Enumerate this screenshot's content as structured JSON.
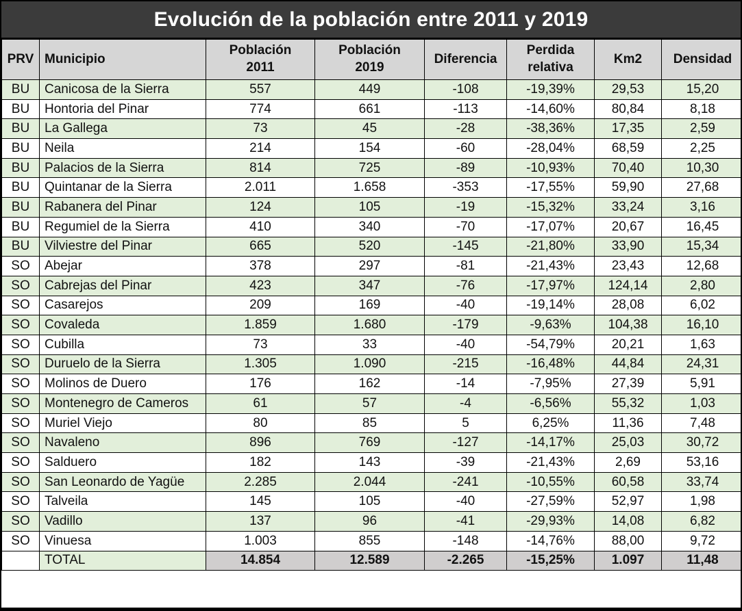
{
  "chart_data": {
    "type": "table",
    "title": "Evolución de la población entre 2011 y 2019",
    "columns": [
      "PRV",
      "Municipio",
      "Población\n2011",
      "Población\n2019",
      "Diferencia",
      "Perdida\nrelativa",
      "Km2",
      "Densidad"
    ],
    "rows": [
      [
        "BU",
        "Canicosa de la Sierra",
        "557",
        "449",
        "-108",
        "-19,39%",
        "29,53",
        "15,20"
      ],
      [
        "BU",
        "Hontoria del Pinar",
        "774",
        "661",
        "-113",
        "-14,60%",
        "80,84",
        "8,18"
      ],
      [
        "BU",
        "La Gallega",
        "73",
        "45",
        "-28",
        "-38,36%",
        "17,35",
        "2,59"
      ],
      [
        "BU",
        "Neila",
        "214",
        "154",
        "-60",
        "-28,04%",
        "68,59",
        "2,25"
      ],
      [
        "BU",
        "Palacios de la Sierra",
        "814",
        "725",
        "-89",
        "-10,93%",
        "70,40",
        "10,30"
      ],
      [
        "BU",
        "Quintanar de la Sierra",
        "2.011",
        "1.658",
        "-353",
        "-17,55%",
        "59,90",
        "27,68"
      ],
      [
        "BU",
        "Rabanera del Pinar",
        "124",
        "105",
        "-19",
        "-15,32%",
        "33,24",
        "3,16"
      ],
      [
        "BU",
        "Regumiel de la Sierra",
        "410",
        "340",
        "-70",
        "-17,07%",
        "20,67",
        "16,45"
      ],
      [
        "BU",
        "Vilviestre del Pinar",
        "665",
        "520",
        "-145",
        "-21,80%",
        "33,90",
        "15,34"
      ],
      [
        "SO",
        "Abejar",
        "378",
        "297",
        "-81",
        "-21,43%",
        "23,43",
        "12,68"
      ],
      [
        "SO",
        "Cabrejas del Pinar",
        "423",
        "347",
        "-76",
        "-17,97%",
        "124,14",
        "2,80"
      ],
      [
        "SO",
        "Casarejos",
        "209",
        "169",
        "-40",
        "-19,14%",
        "28,08",
        "6,02"
      ],
      [
        "SO",
        "Covaleda",
        "1.859",
        "1.680",
        "-179",
        "-9,63%",
        "104,38",
        "16,10"
      ],
      [
        "SO",
        "Cubilla",
        "73",
        "33",
        "-40",
        "-54,79%",
        "20,21",
        "1,63"
      ],
      [
        "SO",
        "Duruelo de la Sierra",
        "1.305",
        "1.090",
        "-215",
        "-16,48%",
        "44,84",
        "24,31"
      ],
      [
        "SO",
        "Molinos de Duero",
        "176",
        "162",
        "-14",
        "-7,95%",
        "27,39",
        "5,91"
      ],
      [
        "SO",
        "Montenegro de Cameros",
        "61",
        "57",
        "-4",
        "-6,56%",
        "55,32",
        "1,03"
      ],
      [
        "SO",
        "Muriel Viejo",
        "80",
        "85",
        "5",
        "6,25%",
        "11,36",
        "7,48"
      ],
      [
        "SO",
        "Navaleno",
        "896",
        "769",
        "-127",
        "-14,17%",
        "25,03",
        "30,72"
      ],
      [
        "SO",
        "Salduero",
        "182",
        "143",
        "-39",
        "-21,43%",
        "2,69",
        "53,16"
      ],
      [
        "SO",
        "San Leonardo de Yagüe",
        "2.285",
        "2.044",
        "-241",
        "-10,55%",
        "60,58",
        "33,74"
      ],
      [
        "SO",
        "Talveila",
        "145",
        "105",
        "-40",
        "-27,59%",
        "52,97",
        "1,98"
      ],
      [
        "SO",
        "Vadillo",
        "137",
        "96",
        "-41",
        "-29,93%",
        "14,08",
        "6,82"
      ],
      [
        "SO",
        "Vinuesa",
        "1.003",
        "855",
        "-148",
        "-14,76%",
        "88,00",
        "9,72"
      ]
    ],
    "total_row": [
      "",
      "TOTAL",
      "14.854",
      "12.589",
      "-2.265",
      "-15,25%",
      "1.097",
      "11,48"
    ],
    "layout_hints": {
      "first_data_row_shading": "green",
      "row_shading_alternates": true,
      "numeric_alignment": "center",
      "municipio_alignment": "left"
    }
  },
  "colors": {
    "title_bg": "#3b3b3b",
    "title_text": "#ffffff",
    "header_bg": "#d6d6d6",
    "row_alt_bg": "#e2efda",
    "row_bg": "#ffffff",
    "total_bg": "#d0cece",
    "border": "#000000"
  }
}
